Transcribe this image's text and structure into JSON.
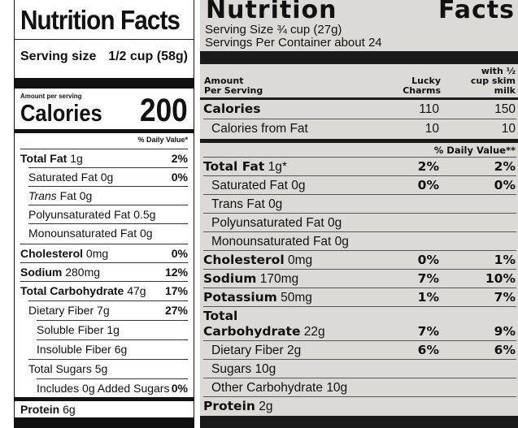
{
  "left_label": {
    "title": "Nutrition Facts",
    "serving_size_label": "Serving size",
    "serving_size_value": "1/2 cup (58g)",
    "amount_per_serving": "Amount per serving",
    "calories_label": "Calories",
    "calories_value": "200",
    "daily_value_header": "% Daily Value*",
    "rows": [
      {
        "name": "Total Fat",
        "amount": "1g",
        "dv": "2%"
      },
      {
        "name": "Saturated Fat",
        "amount": "0g",
        "dv": "0%"
      },
      {
        "name": "Trans",
        "name_suffix": "Fat",
        "amount": "0g",
        "dv": ""
      },
      {
        "name": "Polyunsaturated Fat",
        "amount": "0.5g",
        "dv": ""
      },
      {
        "name": "Monounsaturated Fat",
        "amount": "0g",
        "dv": ""
      },
      {
        "name": "Cholesterol",
        "amount": "0mg",
        "dv": "0%"
      },
      {
        "name": "Sodium",
        "amount": "280mg",
        "dv": "12%"
      },
      {
        "name": "Total Carbohydrate",
        "amount": "47g",
        "dv": "17%"
      },
      {
        "name": "Dietary Fiber",
        "amount": "7g",
        "dv": "27%"
      },
      {
        "name": "Soluble Fiber",
        "amount": "1g",
        "dv": ""
      },
      {
        "name": "Insoluble Fiber",
        "amount": "6g",
        "dv": ""
      },
      {
        "name": "Total Sugars",
        "amount": "5g",
        "dv": ""
      },
      {
        "name": "Includes",
        "amount": "0g Added Sugars",
        "dv": "0%"
      },
      {
        "name": "Protein",
        "amount": "6g",
        "dv": ""
      }
    ]
  },
  "right_label": {
    "title_word1": "Nutrition",
    "title_word2": "Facts",
    "serving_size": "Serving Size ¾ cup (27g)",
    "servings_per_container": "Servings Per Container about 24",
    "amount_header_line1": "Amount",
    "amount_header_line2": "Per Serving",
    "col1_header_line1": "Lucky",
    "col1_header_line2": "Charms",
    "col2_header_line1": "with ½",
    "col2_header_line2": "cup skim",
    "col2_header_line3": "milk",
    "daily_value_header": "% Daily Value**",
    "rows": [
      {
        "name": "Calories",
        "amount": "",
        "v1": "110",
        "v2": "150"
      },
      {
        "name": "Calories from Fat",
        "amount": "",
        "v1": "10",
        "v2": "10"
      },
      {
        "name": "Total Fat",
        "amount": "1g*",
        "v1": "2%",
        "v2": "2%"
      },
      {
        "name": "Saturated Fat",
        "amount": "0g",
        "v1": "0%",
        "v2": "0%"
      },
      {
        "name": "Trans Fat",
        "amount": "0g",
        "v1": "",
        "v2": ""
      },
      {
        "name": "Polyunsaturated Fat",
        "amount": "0g",
        "v1": "",
        "v2": ""
      },
      {
        "name": "Monounsaturated Fat",
        "amount": "0g",
        "v1": "",
        "v2": ""
      },
      {
        "name": "Cholesterol",
        "amount": "0mg",
        "v1": "0%",
        "v2": "1%"
      },
      {
        "name": "Sodium",
        "amount": "170mg",
        "v1": "7%",
        "v2": "10%"
      },
      {
        "name": "Potassium",
        "amount": "50mg",
        "v1": "1%",
        "v2": "7%"
      },
      {
        "name": "Total",
        "name_line2": "Carbohydrate",
        "amount": "22g",
        "v1": "7%",
        "v2": "9%"
      },
      {
        "name": "Dietary Fiber",
        "amount": "2g",
        "v1": "6%",
        "v2": "6%"
      },
      {
        "name": "Sugars",
        "amount": "10g",
        "v1": "",
        "v2": ""
      },
      {
        "name": "Other Carbohydrate",
        "amount": "10g",
        "v1": "",
        "v2": ""
      },
      {
        "name": "Protein",
        "amount": "2g",
        "v1": "",
        "v2": ""
      }
    ]
  }
}
